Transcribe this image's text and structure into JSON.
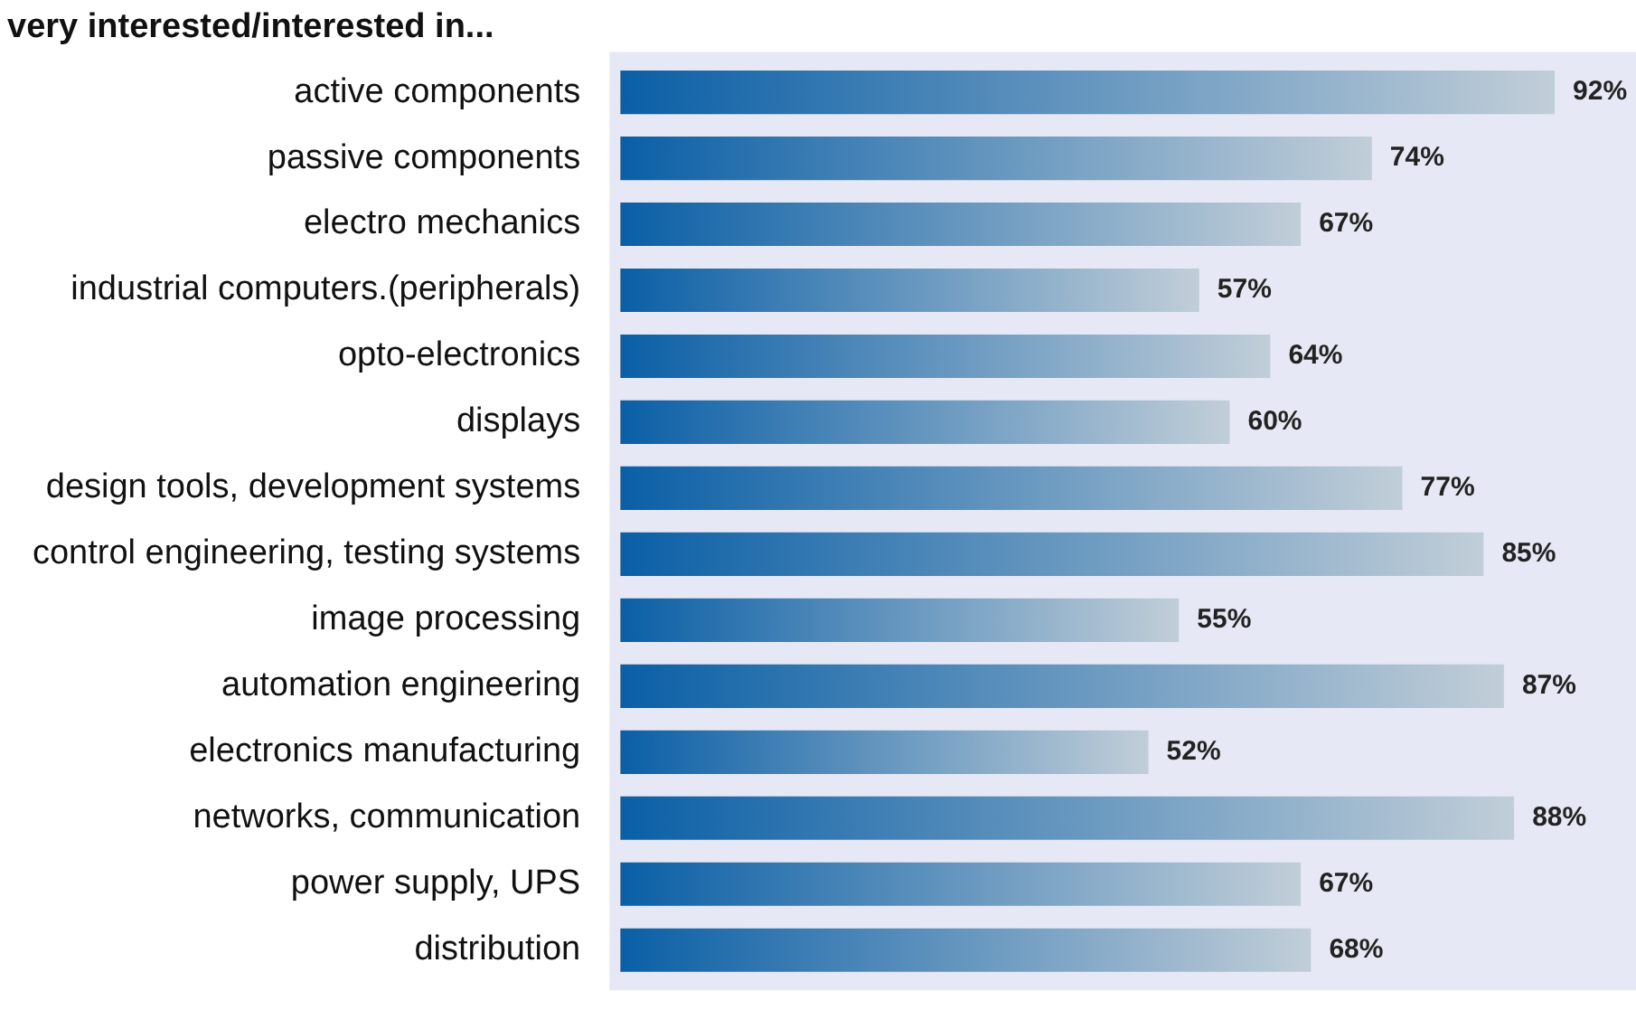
{
  "chart_data": {
    "type": "bar",
    "orientation": "horizontal",
    "title": "very interested/interested in...",
    "categories": [
      "active components",
      "passive components",
      "electro mechanics",
      "industrial computers.(peripherals)",
      "opto-electronics",
      "displays",
      "design tools, development systems",
      "control engineering, testing systems",
      "image processing",
      "automation engineering",
      "electronics manufacturing",
      "networks, communication",
      "power supply, UPS",
      "distribution"
    ],
    "values": [
      92,
      74,
      67,
      57,
      64,
      60,
      77,
      85,
      55,
      87,
      52,
      88,
      67,
      68
    ],
    "value_labels": [
      "92%",
      "74%",
      "67%",
      "57%",
      "64%",
      "60%",
      "77%",
      "85%",
      "55%",
      "87%",
      "52%",
      "88%",
      "67%",
      "68%"
    ],
    "color": "#0a5fa6",
    "xlim": [
      0,
      100
    ],
    "tick_labels": "y",
    "legend": false
  }
}
